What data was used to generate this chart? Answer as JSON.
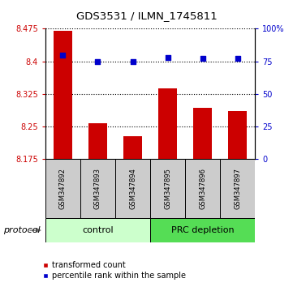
{
  "title": "GDS3531 / ILMN_1745811",
  "samples": [
    "GSM347892",
    "GSM347893",
    "GSM347894",
    "GSM347895",
    "GSM347896",
    "GSM347897"
  ],
  "transformed_counts": [
    8.47,
    8.258,
    8.228,
    8.337,
    8.293,
    8.285
  ],
  "percentile_ranks": [
    80,
    75,
    75,
    78,
    77,
    77
  ],
  "ylim_left": [
    8.175,
    8.475
  ],
  "ylim_right": [
    0,
    100
  ],
  "yticks_left": [
    8.175,
    8.25,
    8.325,
    8.4,
    8.475
  ],
  "yticks_right": [
    0,
    25,
    50,
    75,
    100
  ],
  "ytick_labels_left": [
    "8.175",
    "8.25",
    "8.325",
    "8.4",
    "8.475"
  ],
  "ytick_labels_right": [
    "0",
    "25",
    "50",
    "75",
    "100%"
  ],
  "bar_color": "#CC0000",
  "dot_color": "#0000CC",
  "bar_bottom": 8.175,
  "bar_width": 0.55,
  "label_red": "transformed count",
  "label_blue": "percentile rank within the sample",
  "protocol_label": "protocol",
  "control_bg": "#CCFFCC",
  "prc_bg": "#55DD55",
  "sample_bg": "#CCCCCC",
  "n_control": 3,
  "n_prc": 3
}
